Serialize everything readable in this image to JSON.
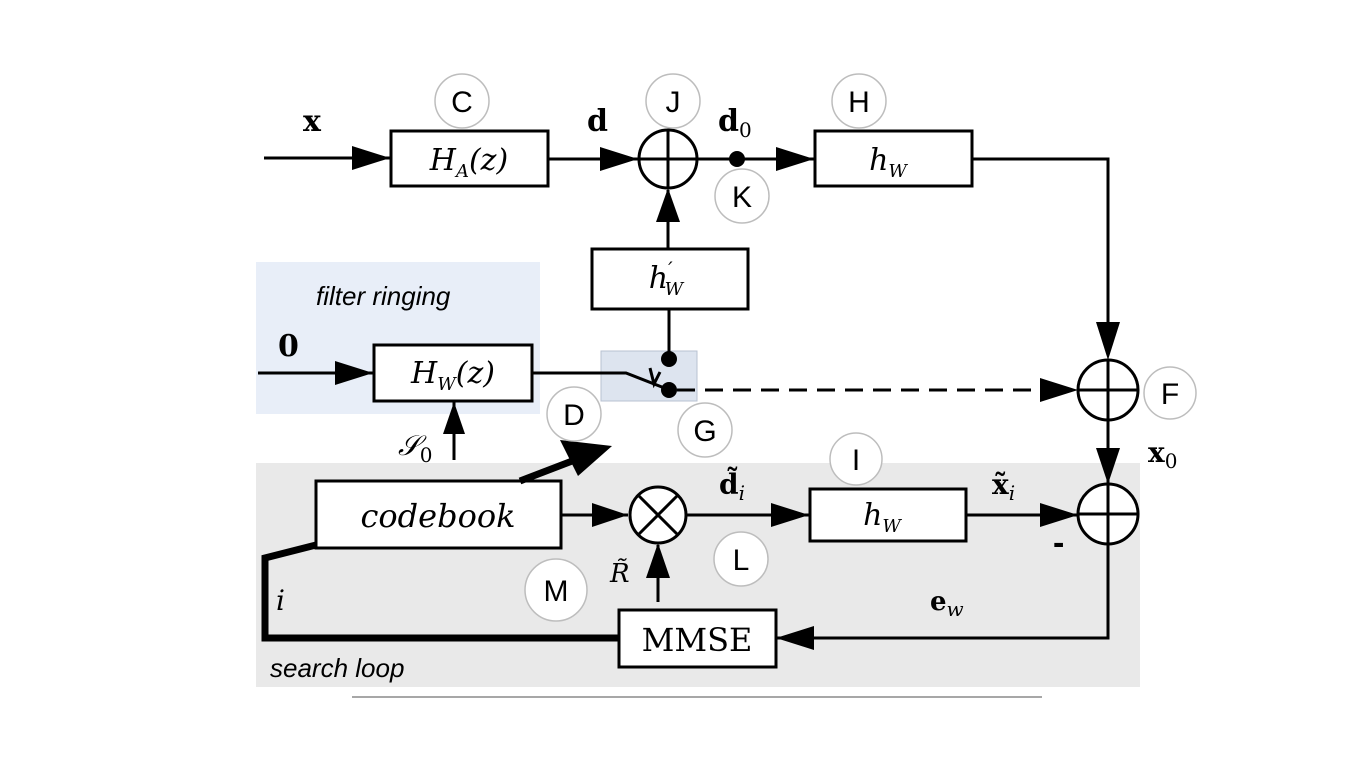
{
  "regions": {
    "filter_ringing": "filter ringing",
    "search_loop": "search loop"
  },
  "blocks": {
    "ha": {
      "name": "H",
      "sub": "A",
      "arg": "(z)"
    },
    "hw_top": {
      "name": "h",
      "sub": "W"
    },
    "hw_prime": {
      "name": "h",
      "sup": "′",
      "sub": "W"
    },
    "hwz": {
      "name": "H",
      "sub": "W",
      "arg": "(z)"
    },
    "codebook": "codebook",
    "hw_bottom": {
      "name": "h",
      "sub": "W"
    },
    "mmse": "MMSE"
  },
  "signals": {
    "x": "x",
    "d": "d",
    "d0": {
      "name": "d",
      "sub": "0"
    },
    "zero": "0",
    "s0": {
      "name": "𝒮",
      "sub": "0"
    },
    "x0": {
      "name": "x",
      "sub": "0"
    },
    "di": {
      "name": "d̃",
      "sub": "i"
    },
    "xi": {
      "name": "x̃",
      "sub": "i"
    },
    "r": "R̃",
    "ew": {
      "name": "e",
      "sub": "w"
    },
    "i": "i",
    "minus": "-"
  },
  "markers": [
    "C",
    "J",
    "H",
    "K",
    "F",
    "D",
    "G",
    "I",
    "L",
    "M"
  ]
}
